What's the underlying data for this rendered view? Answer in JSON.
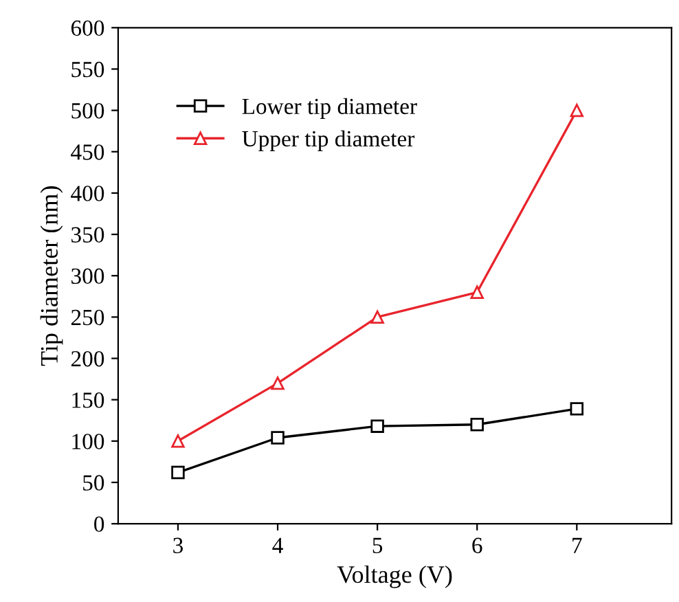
{
  "chart_data": {
    "type": "line",
    "xlabel": "Voltage (V)",
    "ylabel": "Tip diameter (nm)",
    "x": [
      3,
      4,
      5,
      6,
      7
    ],
    "series": [
      {
        "name": "Lower tip diameter",
        "color": "#000000",
        "marker": "square",
        "values": [
          62,
          104,
          118,
          120,
          139
        ]
      },
      {
        "name": "Upper tip diameter",
        "color": "#e8242c",
        "marker": "triangle",
        "values": [
          100,
          170,
          250,
          280,
          500
        ]
      }
    ],
    "xlim": [
      2.4,
      7.95
    ],
    "xticks": [
      3,
      4,
      5,
      6,
      7
    ],
    "ylim": [
      0,
      600
    ],
    "yticks": [
      0,
      50,
      100,
      150,
      200,
      250,
      300,
      350,
      400,
      450,
      500,
      550,
      600
    ],
    "grid": false,
    "legend": "top left",
    "line_style": "solid"
  }
}
